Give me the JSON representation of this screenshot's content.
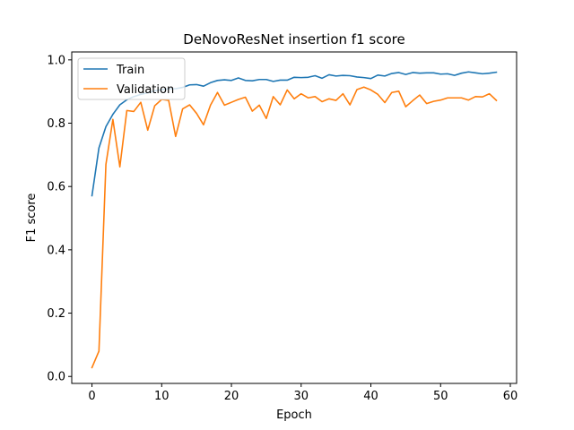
{
  "chart_data": {
    "type": "line",
    "title": "DeNovoResNet insertion f1 score",
    "xlabel": "Epoch",
    "ylabel": "F1 score",
    "xlim": [
      -2.9,
      60.9
    ],
    "ylim": [
      -0.022,
      1.025
    ],
    "xticks": [
      0,
      10,
      20,
      30,
      40,
      50,
      60
    ],
    "xtick_labels": [
      "0",
      "10",
      "20",
      "30",
      "40",
      "50",
      "60"
    ],
    "yticks": [
      0.0,
      0.2,
      0.4,
      0.6,
      0.8,
      1.0
    ],
    "ytick_labels": [
      "0.0",
      "0.2",
      "0.4",
      "0.6",
      "0.8",
      "1.0"
    ],
    "grid": false,
    "legend_position": "top-left",
    "x": [
      0,
      1,
      2,
      3,
      4,
      5,
      6,
      7,
      8,
      9,
      10,
      11,
      12,
      13,
      14,
      15,
      16,
      17,
      18,
      19,
      20,
      21,
      22,
      23,
      24,
      25,
      26,
      27,
      28,
      29,
      30,
      31,
      32,
      33,
      34,
      35,
      36,
      37,
      38,
      39,
      40,
      41,
      42,
      43,
      44,
      45,
      46,
      47,
      48,
      49,
      50,
      51,
      52,
      53,
      54,
      55,
      56,
      57,
      58
    ],
    "series": [
      {
        "name": "Train",
        "color": "#1f77b4",
        "values": [
          0.571,
          0.722,
          0.789,
          0.828,
          0.858,
          0.874,
          0.884,
          0.891,
          0.896,
          0.902,
          0.906,
          0.909,
          0.909,
          0.913,
          0.921,
          0.922,
          0.917,
          0.928,
          0.935,
          0.937,
          0.935,
          0.943,
          0.935,
          0.934,
          0.938,
          0.938,
          0.932,
          0.936,
          0.936,
          0.945,
          0.944,
          0.945,
          0.95,
          0.942,
          0.953,
          0.949,
          0.951,
          0.95,
          0.946,
          0.944,
          0.941,
          0.952,
          0.949,
          0.957,
          0.96,
          0.954,
          0.96,
          0.958,
          0.959,
          0.959,
          0.955,
          0.956,
          0.951,
          0.958,
          0.962,
          0.959,
          0.956,
          0.958,
          0.961
        ]
      },
      {
        "name": "Validation",
        "color": "#ff7f0e",
        "values": [
          0.028,
          0.08,
          0.67,
          0.812,
          0.662,
          0.84,
          0.837,
          0.866,
          0.778,
          0.855,
          0.875,
          0.872,
          0.758,
          0.845,
          0.858,
          0.831,
          0.795,
          0.857,
          0.897,
          0.857,
          0.866,
          0.875,
          0.882,
          0.838,
          0.857,
          0.815,
          0.884,
          0.858,
          0.905,
          0.877,
          0.893,
          0.88,
          0.884,
          0.868,
          0.877,
          0.872,
          0.893,
          0.858,
          0.906,
          0.914,
          0.905,
          0.891,
          0.865,
          0.897,
          0.901,
          0.852,
          0.871,
          0.889,
          0.862,
          0.869,
          0.873,
          0.88,
          0.88,
          0.88,
          0.873,
          0.884,
          0.883,
          0.893,
          0.872
        ]
      }
    ]
  }
}
